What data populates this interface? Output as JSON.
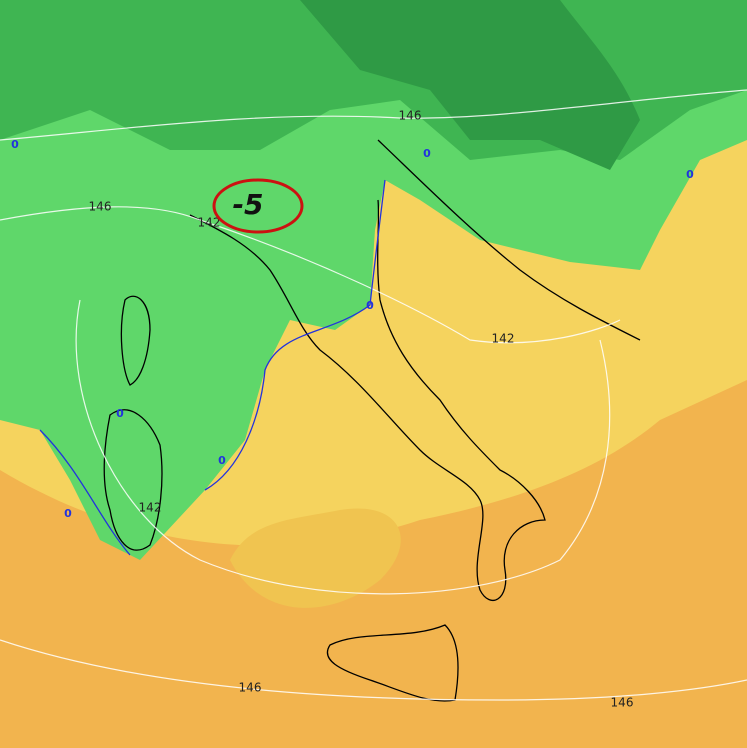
{
  "annotation": "-5",
  "contour_labels": [
    "146",
    "146",
    "146",
    "146",
    "142",
    "142",
    "142"
  ],
  "zero_labels": [
    "0",
    "0",
    "0",
    "0",
    "0",
    "0",
    "0"
  ]
}
